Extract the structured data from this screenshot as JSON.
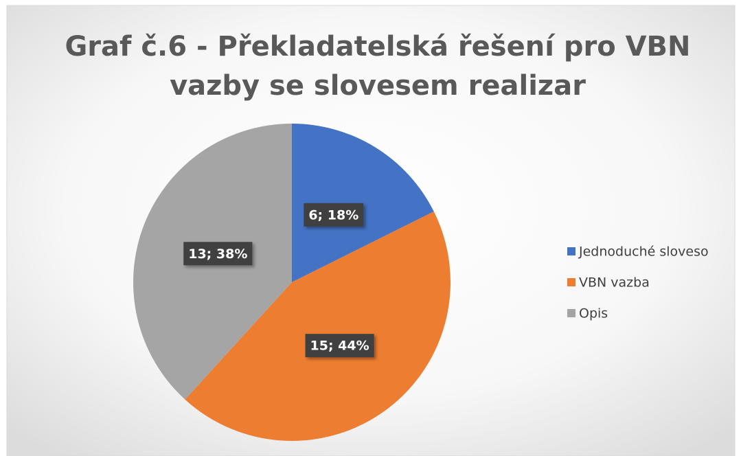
{
  "chart_data": {
    "type": "pie",
    "title": [
      "Graf č.6 - Překladatelská řešení pro VBN",
      "vazby se slovesem realizar"
    ],
    "categories": [
      "Jednoduché sloveso",
      "VBN vazba",
      "Opis"
    ],
    "values": [
      6,
      15,
      13
    ],
    "value_labels": [
      "6; 18%",
      "15; 44%",
      "13; 38%"
    ],
    "colors": [
      "#4472c4",
      "#ed7d31",
      "#a5a5a5"
    ],
    "legend": "right"
  }
}
